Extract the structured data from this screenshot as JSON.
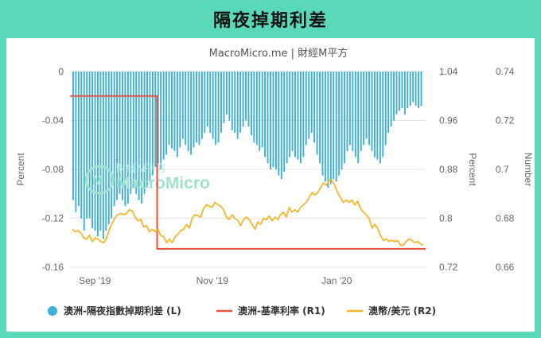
{
  "page": {
    "title": "隔夜掉期利差"
  },
  "chart_data": {
    "type": "bar+line",
    "subtitle": "MacroMicro.me | 財經M平方",
    "watermark": {
      "cn": "財經M平方",
      "en": "MacroMicro"
    },
    "x_ticks": [
      "Sep '19",
      "Nov '19",
      "Jan '20"
    ],
    "y_left": {
      "label": "Percent",
      "ticks": [
        "0",
        "-0.04",
        "-0.08",
        "-0.12",
        "-0.16"
      ],
      "range": [
        -0.16,
        0
      ]
    },
    "y_right1": {
      "label": "Percent",
      "ticks": [
        "1.04",
        "0.96",
        "0.88",
        "0.8",
        "0.72"
      ],
      "range": [
        0.72,
        1.04
      ]
    },
    "y_right2": {
      "label": "Number",
      "ticks": [
        "0.74",
        "0.72",
        "0.7",
        "0.68",
        "0.66"
      ],
      "range": [
        0.66,
        0.74
      ]
    },
    "series": [
      {
        "name": "澳洲-隔夜指數掉期利差 (L)",
        "kind": "bar",
        "axis": "left",
        "color": "#3ab0d8",
        "values": [
          -0.105,
          -0.115,
          -0.11,
          -0.12,
          -0.13,
          -0.12,
          -0.12,
          -0.128,
          -0.13,
          -0.135,
          -0.13,
          -0.137,
          -0.13,
          -0.125,
          -0.12,
          -0.11,
          -0.105,
          -0.1,
          -0.105,
          -0.11,
          -0.108,
          -0.1,
          -0.095,
          -0.1,
          -0.105,
          -0.108,
          -0.1,
          -0.095,
          -0.09,
          -0.085,
          -0.078,
          -0.075,
          -0.08,
          -0.072,
          -0.068,
          -0.06,
          -0.063,
          -0.065,
          -0.07,
          -0.062,
          -0.055,
          -0.06,
          -0.065,
          -0.068,
          -0.062,
          -0.058,
          -0.06,
          -0.055,
          -0.05,
          -0.045,
          -0.05,
          -0.055,
          -0.06,
          -0.058,
          -0.05,
          -0.042,
          -0.035,
          -0.04,
          -0.048,
          -0.05,
          -0.055,
          -0.05,
          -0.045,
          -0.04,
          -0.045,
          -0.052,
          -0.058,
          -0.06,
          -0.065,
          -0.062,
          -0.07,
          -0.075,
          -0.08,
          -0.078,
          -0.08,
          -0.085,
          -0.088,
          -0.082,
          -0.075,
          -0.07,
          -0.065,
          -0.07,
          -0.072,
          -0.075,
          -0.07,
          -0.06,
          -0.055,
          -0.05,
          -0.058,
          -0.068,
          -0.075,
          -0.085,
          -0.09,
          -0.095,
          -0.092,
          -0.088,
          -0.09,
          -0.085,
          -0.08,
          -0.075,
          -0.065,
          -0.06,
          -0.065,
          -0.07,
          -0.075,
          -0.065,
          -0.06,
          -0.055,
          -0.06,
          -0.065,
          -0.07,
          -0.072,
          -0.075,
          -0.07,
          -0.06,
          -0.05,
          -0.045,
          -0.04,
          -0.035,
          -0.032,
          -0.03,
          -0.035,
          -0.03,
          -0.028,
          -0.025,
          -0.028,
          -0.03,
          -0.028
        ]
      },
      {
        "name": "澳洲-基準利率 (R1)",
        "kind": "step-line",
        "axis": "right1",
        "color": "#e8503a",
        "points": [
          [
            0,
            1.0
          ],
          [
            0.245,
            1.0
          ],
          [
            0.245,
            0.75
          ],
          [
            1,
            0.75
          ]
        ]
      },
      {
        "name": "澳幣/美元 (R2)",
        "kind": "line",
        "axis": "right2",
        "color": "#f5b62a",
        "values": [
          0.6755,
          0.6745,
          0.675,
          0.674,
          0.672,
          0.6715,
          0.673,
          0.6705,
          0.672,
          0.6715,
          0.6705,
          0.67,
          0.672,
          0.6755,
          0.678,
          0.6805,
          0.6815,
          0.682,
          0.6815,
          0.682,
          0.6835,
          0.683,
          0.6805,
          0.679,
          0.6795,
          0.6765,
          0.677,
          0.6745,
          0.6755,
          0.6745,
          0.6755,
          0.673,
          0.6725,
          0.67,
          0.6715,
          0.67,
          0.6725,
          0.6735,
          0.675,
          0.6755,
          0.6775,
          0.676,
          0.68,
          0.6815,
          0.681,
          0.6805,
          0.684,
          0.6855,
          0.685,
          0.6845,
          0.6865,
          0.6855,
          0.685,
          0.6835,
          0.6805,
          0.6795,
          0.6815,
          0.68,
          0.679,
          0.677,
          0.6795,
          0.6805,
          0.6795,
          0.6775,
          0.6755,
          0.6785,
          0.6775,
          0.68,
          0.6795,
          0.681,
          0.679,
          0.6805,
          0.6795,
          0.6815,
          0.6825,
          0.6805,
          0.6845,
          0.6825,
          0.6835,
          0.6825,
          0.6845,
          0.6855,
          0.6865,
          0.6885,
          0.6905,
          0.6895,
          0.6905,
          0.6925,
          0.6945,
          0.6935,
          0.6955,
          0.6955,
          0.6935,
          0.6905,
          0.6885,
          0.6865,
          0.6875,
          0.6865,
          0.6875,
          0.6855,
          0.687,
          0.684,
          0.6825,
          0.6815,
          0.68,
          0.676,
          0.6775,
          0.676,
          0.673,
          0.671,
          0.6715,
          0.6705,
          0.671,
          0.6705,
          0.671,
          0.669,
          0.669,
          0.6705,
          0.6715,
          0.671,
          0.67,
          0.6705,
          0.6695,
          0.669
        ]
      }
    ]
  }
}
